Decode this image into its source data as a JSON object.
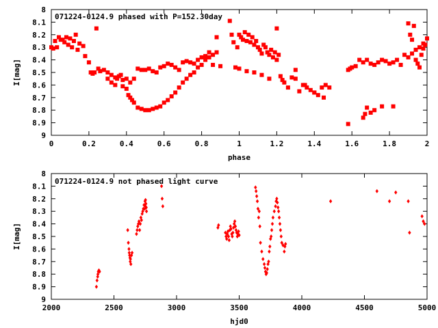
{
  "chart_data": [
    {
      "type": "scatter",
      "title": "071224-0124.9 phased with P=152.30day",
      "xlabel": "phase",
      "ylabel": "I[mag]",
      "xlim": [
        0,
        2
      ],
      "ylim": [
        9,
        8
      ],
      "y_inverted": true,
      "xticks": [
        "0",
        "0.2",
        "0.4",
        "0.6",
        "0.8",
        "1",
        "1.2",
        "1.4",
        "1.6",
        "1.8",
        "2"
      ],
      "yticks": [
        "8",
        "8.1",
        "8.2",
        "8.3",
        "8.4",
        "8.5",
        "8.6",
        "8.7",
        "8.8",
        "8.9",
        "9"
      ],
      "grid": false,
      "marker": "filled-square",
      "color": "#ff0000",
      "series": [
        {
          "x": [
            0.0,
            0.01,
            0.02,
            0.03,
            0.04,
            0.05,
            0.06,
            0.07,
            0.08,
            0.09,
            0.1,
            0.11,
            0.12,
            0.13,
            0.14,
            0.15,
            0.17,
            0.18,
            0.2,
            0.24,
            0.25,
            0.21,
            0.22,
            0.23,
            0.26,
            0.28,
            0.3,
            0.32,
            0.34,
            0.36,
            0.38,
            0.4,
            0.42,
            0.44,
            0.46,
            0.48,
            0.5,
            0.52,
            0.54,
            0.56,
            0.58,
            0.6,
            0.62,
            0.64,
            0.66,
            0.68,
            0.7,
            0.72,
            0.74,
            0.76,
            0.78,
            0.8,
            0.82,
            0.84,
            0.86,
            0.88,
            0.9,
            0.3,
            0.32,
            0.34,
            0.35,
            0.37,
            0.38,
            0.4,
            0.41,
            0.42,
            0.43,
            0.44,
            0.46,
            0.48,
            0.5,
            0.52,
            0.54,
            0.56,
            0.58,
            0.6,
            0.62,
            0.64,
            0.66,
            0.68,
            0.7,
            0.72,
            0.74,
            0.76,
            0.78,
            0.8,
            0.82,
            0.84,
            0.86,
            0.88,
            0.95,
            0.96,
            0.97,
            0.98,
            0.99,
            1.0,
            1.01,
            1.02,
            1.03,
            1.04,
            1.05,
            1.06,
            1.07,
            1.08,
            1.09,
            1.1,
            1.11,
            1.12,
            1.13,
            1.14,
            1.15,
            1.16,
            1.17,
            1.18,
            1.19,
            1.2,
            1.21,
            1.22,
            1.23,
            1.24,
            1.26,
            1.28,
            1.3,
            1.32,
            1.34,
            1.36,
            1.38,
            1.4,
            1.42,
            1.44,
            1.46,
            1.48,
            1.0,
            1.04,
            1.08,
            1.12,
            1.16,
            1.2,
            1.3,
            1.35,
            1.4,
            1.45,
            1.58,
            1.59,
            1.6,
            1.62,
            1.64,
            1.66,
            1.68,
            1.7,
            1.72,
            1.74,
            1.76,
            1.78,
            1.8,
            1.82,
            1.84,
            1.86,
            1.88,
            1.9,
            1.92,
            1.94,
            1.96,
            1.98,
            2.0,
            1.66,
            1.67,
            1.68,
            1.7,
            1.72,
            1.76,
            1.82,
            1.58,
            1.9,
            1.91,
            1.92,
            1.93,
            1.94,
            1.95,
            1.96,
            1.97,
            1.98,
            1.99
          ],
          "y": [
            8.3,
            8.31,
            8.25,
            8.3,
            8.22,
            8.24,
            8.24,
            8.26,
            8.22,
            8.28,
            8.23,
            8.3,
            8.25,
            8.2,
            8.32,
            8.27,
            8.29,
            8.37,
            8.42,
            8.15,
            8.47,
            8.5,
            8.51,
            8.5,
            8.49,
            8.48,
            8.5,
            8.52,
            8.54,
            8.53,
            8.56,
            8.55,
            8.58,
            8.55,
            8.47,
            8.48,
            8.48,
            8.47,
            8.49,
            8.5,
            8.46,
            8.45,
            8.43,
            8.44,
            8.46,
            8.48,
            8.42,
            8.41,
            8.42,
            8.43,
            8.4,
            8.38,
            8.37,
            8.34,
            8.44,
            8.22,
            8.45,
            8.55,
            8.58,
            8.6,
            8.55,
            8.52,
            8.61,
            8.63,
            8.68,
            8.7,
            8.72,
            8.74,
            8.78,
            8.79,
            8.8,
            8.8,
            8.79,
            8.78,
            8.77,
            8.74,
            8.72,
            8.69,
            8.66,
            8.62,
            8.58,
            8.55,
            8.52,
            8.5,
            8.46,
            8.44,
            8.4,
            8.38,
            8.36,
            8.34,
            8.09,
            8.2,
            8.26,
            8.46,
            8.3,
            8.2,
            8.22,
            8.24,
            8.18,
            8.25,
            8.2,
            8.26,
            8.22,
            8.28,
            8.25,
            8.3,
            8.32,
            8.35,
            8.28,
            8.3,
            8.34,
            8.36,
            8.32,
            8.38,
            8.34,
            8.15,
            8.36,
            8.53,
            8.56,
            8.58,
            8.62,
            8.54,
            8.48,
            8.65,
            8.6,
            8.62,
            8.64,
            8.66,
            8.68,
            8.62,
            8.6,
            8.62,
            8.47,
            8.49,
            8.5,
            8.52,
            8.55,
            8.4,
            8.55,
            8.6,
            8.66,
            8.7,
            8.48,
            8.47,
            8.46,
            8.45,
            8.4,
            8.42,
            8.4,
            8.43,
            8.44,
            8.42,
            8.4,
            8.41,
            8.43,
            8.42,
            8.4,
            8.44,
            8.36,
            8.38,
            8.35,
            8.32,
            8.3,
            8.27,
            8.23,
            8.86,
            8.83,
            8.78,
            8.82,
            8.8,
            8.77,
            8.77,
            8.91,
            8.11,
            8.2,
            8.24,
            8.13,
            8.4,
            8.43,
            8.46,
            8.36,
            8.31,
            8.28
          ]
        }
      ]
    },
    {
      "type": "scatter",
      "title": "071224-0124.9 not phased light curve",
      "xlabel": "hjd0",
      "ylabel": "I[mag]",
      "xlim": [
        2000,
        5000
      ],
      "ylim": [
        9,
        8
      ],
      "y_inverted": true,
      "xticks": [
        "2000",
        "2500",
        "3000",
        "3500",
        "4000",
        "4500",
        "5000"
      ],
      "yticks": [
        "8",
        "8.1",
        "8.2",
        "8.3",
        "8.4",
        "8.5",
        "8.6",
        "8.7",
        "8.8",
        "8.9",
        "9"
      ],
      "grid": false,
      "marker": "small-diamond",
      "color": "#ff0000",
      "series": [
        {
          "x": [
            2360,
            2365,
            2370,
            2372,
            2375,
            2380,
            2385,
            2610,
            2615,
            2620,
            2622,
            2625,
            2628,
            2630,
            2632,
            2635,
            2640,
            2645,
            2680,
            2685,
            2690,
            2695,
            2700,
            2705,
            2710,
            2715,
            2720,
            2725,
            2730,
            2735,
            2740,
            2745,
            2748,
            2750,
            2752,
            2755,
            2758,
            2760,
            2880,
            2885,
            2890,
            3330,
            3335,
            3390,
            3395,
            3400,
            3405,
            3410,
            3415,
            3420,
            3425,
            3430,
            3435,
            3440,
            3445,
            3450,
            3455,
            3460,
            3465,
            3470,
            3475,
            3480,
            3485,
            3490,
            3495,
            3500,
            3630,
            3635,
            3640,
            3645,
            3650,
            3655,
            3660,
            3665,
            3670,
            3680,
            3690,
            3700,
            3705,
            3710,
            3715,
            3720,
            3725,
            3730,
            3735,
            3740,
            3745,
            3750,
            3755,
            3760,
            3765,
            3770,
            3780,
            3790,
            3795,
            3800,
            3805,
            3810,
            3815,
            3820,
            3825,
            3830,
            3835,
            3840,
            3850,
            3860,
            3865,
            3870,
            4230,
            4600,
            4700,
            4750,
            4850,
            4860,
            4960,
            4970,
            4980
          ],
          "y": [
            8.9,
            8.85,
            8.82,
            8.8,
            8.78,
            8.77,
            8.78,
            8.45,
            8.55,
            8.6,
            8.63,
            8.65,
            8.67,
            8.7,
            8.68,
            8.72,
            8.65,
            8.63,
            8.48,
            8.45,
            8.42,
            8.4,
            8.38,
            8.45,
            8.4,
            8.35,
            8.37,
            8.32,
            8.3,
            8.28,
            8.25,
            8.28,
            8.22,
            8.26,
            8.21,
            8.24,
            8.27,
            8.3,
            8.1,
            8.2,
            8.26,
            8.43,
            8.41,
            8.47,
            8.5,
            8.52,
            8.48,
            8.46,
            8.5,
            8.53,
            8.45,
            8.42,
            8.44,
            8.48,
            8.5,
            8.47,
            8.43,
            8.4,
            8.38,
            8.42,
            8.45,
            8.47,
            8.5,
            8.48,
            8.46,
            8.49,
            8.11,
            8.14,
            8.18,
            8.22,
            8.28,
            8.35,
            8.3,
            8.42,
            8.55,
            8.62,
            8.68,
            8.72,
            8.75,
            8.78,
            8.8,
            8.79,
            8.76,
            8.72,
            8.7,
            8.62,
            8.58,
            8.52,
            8.5,
            8.45,
            8.4,
            8.35,
            8.3,
            8.26,
            8.22,
            8.2,
            8.23,
            8.27,
            8.3,
            8.35,
            8.4,
            8.45,
            8.5,
            8.55,
            8.57,
            8.62,
            8.58,
            8.56,
            8.22,
            8.14,
            8.22,
            8.15,
            8.22,
            8.47,
            8.34,
            8.38,
            8.4
          ]
        }
      ]
    }
  ]
}
